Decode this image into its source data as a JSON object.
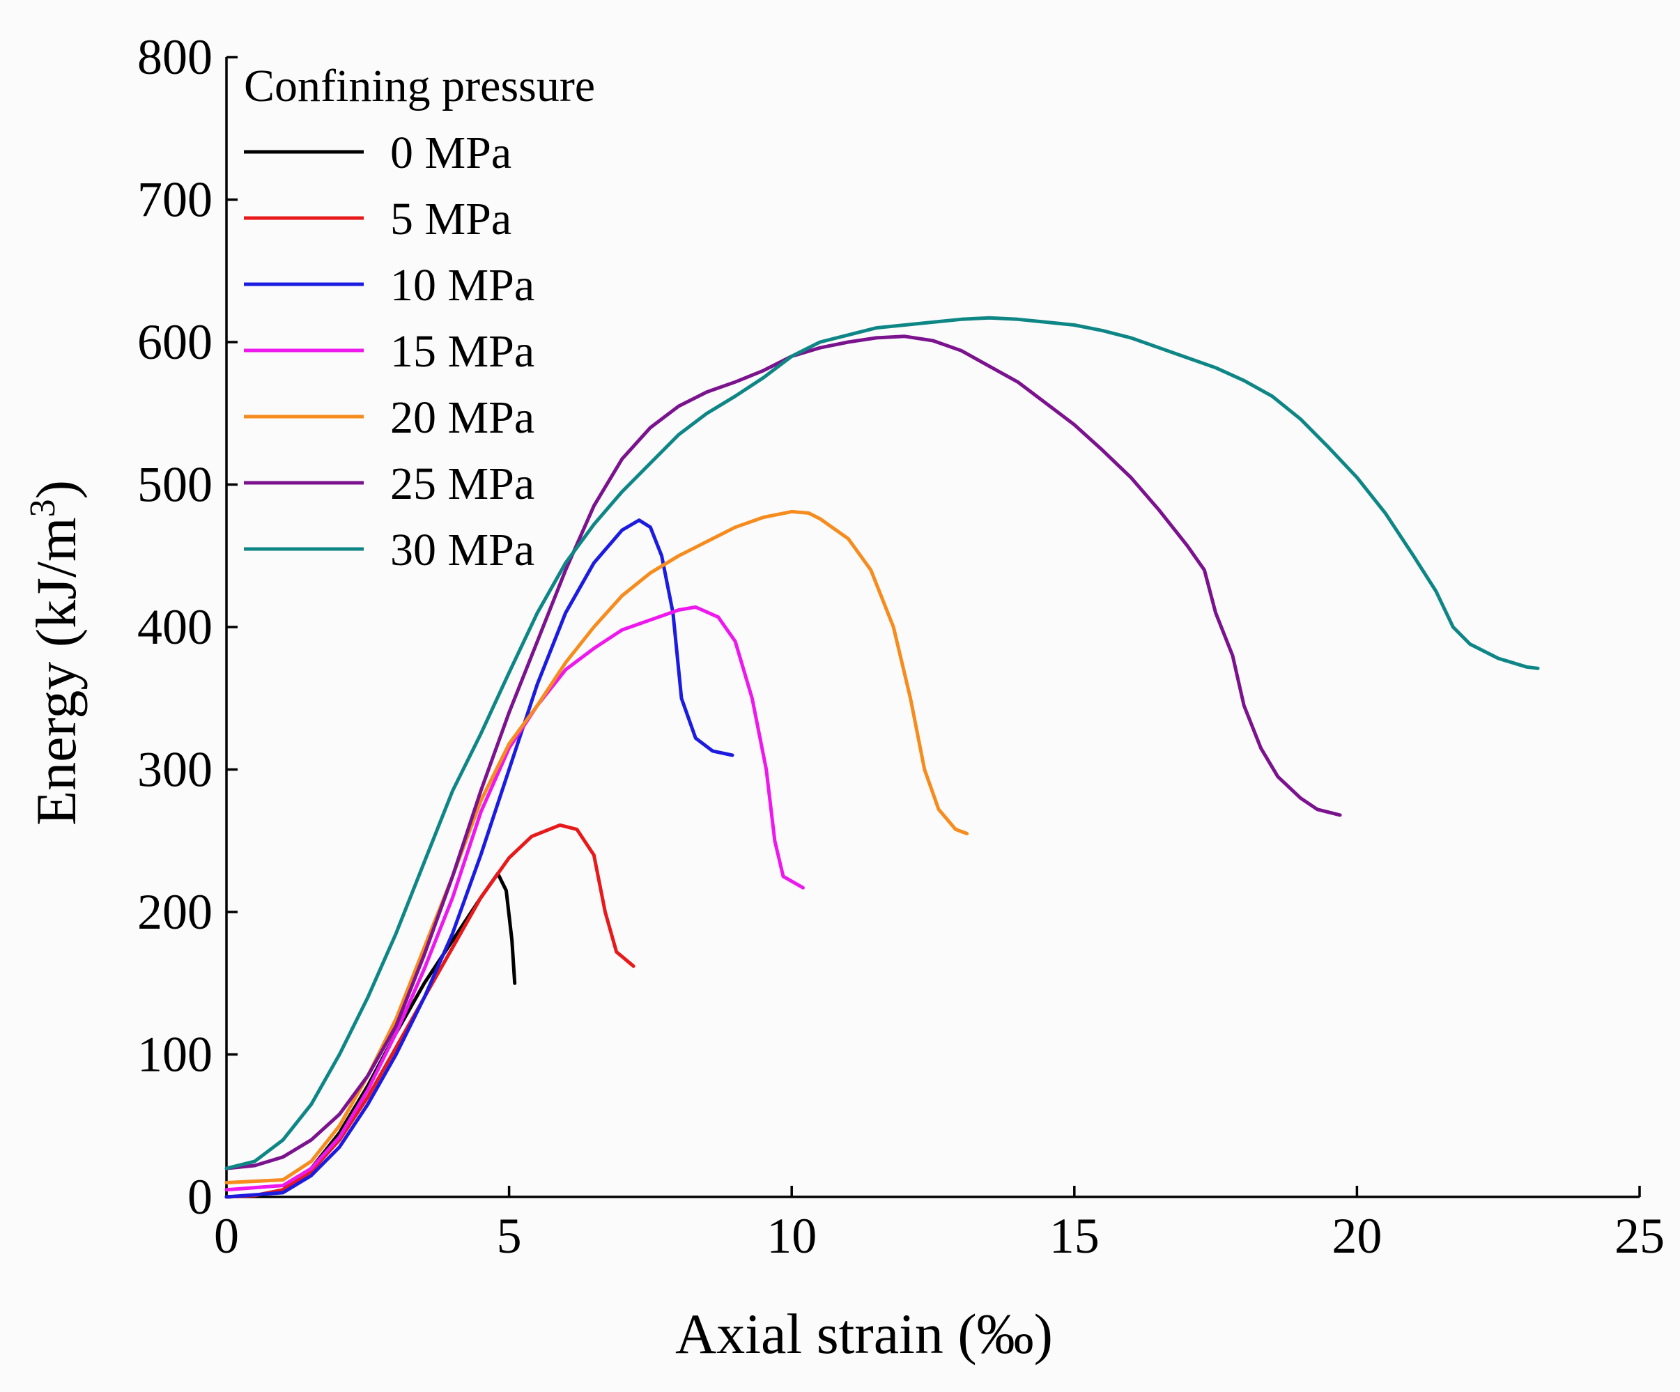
{
  "chart_data": {
    "type": "line",
    "title": "",
    "xlabel": "Axial strain (‰)",
    "ylabel": "Energy (kJ/m",
    "ylabel_sup": "3",
    "ylabel_close": ")",
    "xlim": [
      0,
      25
    ],
    "ylim": [
      0,
      800
    ],
    "xticks": [
      0,
      5,
      10,
      15,
      20,
      25
    ],
    "yticks": [
      0,
      100,
      200,
      300,
      400,
      500,
      600,
      700,
      800
    ],
    "grid": false,
    "legend": {
      "title": "Confining pressure",
      "position": "top-left"
    },
    "series": [
      {
        "name": "0 MPa",
        "color": "#000000",
        "points": [
          [
            0,
            0
          ],
          [
            0.5,
            1
          ],
          [
            1,
            5
          ],
          [
            1.5,
            20
          ],
          [
            2,
            45
          ],
          [
            2.5,
            78
          ],
          [
            3,
            115
          ],
          [
            3.5,
            150
          ],
          [
            4,
            180
          ],
          [
            4.5,
            210
          ],
          [
            4.8,
            227
          ],
          [
            4.95,
            215
          ],
          [
            5.05,
            180
          ],
          [
            5.1,
            150
          ]
        ]
      },
      {
        "name": "5 MPa",
        "color": "#e8191b",
        "points": [
          [
            0,
            0
          ],
          [
            0.5,
            1
          ],
          [
            1,
            5
          ],
          [
            1.5,
            18
          ],
          [
            2,
            40
          ],
          [
            2.5,
            70
          ],
          [
            3,
            105
          ],
          [
            3.5,
            140
          ],
          [
            4,
            175
          ],
          [
            4.5,
            210
          ],
          [
            5,
            238
          ],
          [
            5.4,
            253
          ],
          [
            5.9,
            261
          ],
          [
            6.2,
            258
          ],
          [
            6.5,
            240
          ],
          [
            6.7,
            200
          ],
          [
            6.9,
            172
          ],
          [
            7.2,
            162
          ]
        ]
      },
      {
        "name": "10 MPa",
        "color": "#1c1ce0",
        "points": [
          [
            0,
            0
          ],
          [
            1,
            3
          ],
          [
            1.5,
            15
          ],
          [
            2,
            35
          ],
          [
            2.5,
            65
          ],
          [
            3,
            100
          ],
          [
            3.5,
            140
          ],
          [
            4,
            185
          ],
          [
            4.5,
            240
          ],
          [
            5,
            300
          ],
          [
            5.5,
            360
          ],
          [
            6,
            410
          ],
          [
            6.5,
            445
          ],
          [
            7,
            468
          ],
          [
            7.3,
            475
          ],
          [
            7.5,
            470
          ],
          [
            7.7,
            450
          ],
          [
            7.9,
            410
          ],
          [
            8.05,
            350
          ],
          [
            8.3,
            322
          ],
          [
            8.6,
            313
          ],
          [
            8.95,
            310
          ]
        ]
      },
      {
        "name": "15 MPa",
        "color": "#ee18ee",
        "points": [
          [
            0,
            5
          ],
          [
            1,
            8
          ],
          [
            1.5,
            20
          ],
          [
            2,
            42
          ],
          [
            2.5,
            75
          ],
          [
            3,
            115
          ],
          [
            3.5,
            160
          ],
          [
            4,
            210
          ],
          [
            4.5,
            270
          ],
          [
            5,
            315
          ],
          [
            5.5,
            345
          ],
          [
            6,
            370
          ],
          [
            6.5,
            385
          ],
          [
            7,
            398
          ],
          [
            7.5,
            405
          ],
          [
            8,
            412
          ],
          [
            8.3,
            414
          ],
          [
            8.7,
            407
          ],
          [
            9,
            390
          ],
          [
            9.3,
            350
          ],
          [
            9.55,
            300
          ],
          [
            9.7,
            250
          ],
          [
            9.85,
            225
          ],
          [
            10.2,
            217
          ]
        ]
      },
      {
        "name": "20 MPa",
        "color": "#f68c1e",
        "points": [
          [
            0,
            10
          ],
          [
            1,
            12
          ],
          [
            1.5,
            25
          ],
          [
            2,
            50
          ],
          [
            2.5,
            85
          ],
          [
            3,
            125
          ],
          [
            3.5,
            175
          ],
          [
            4,
            225
          ],
          [
            4.5,
            278
          ],
          [
            5,
            318
          ],
          [
            5.5,
            345
          ],
          [
            6,
            375
          ],
          [
            6.5,
            400
          ],
          [
            7,
            422
          ],
          [
            7.5,
            438
          ],
          [
            8,
            450
          ],
          [
            8.5,
            460
          ],
          [
            9,
            470
          ],
          [
            9.5,
            477
          ],
          [
            10,
            481
          ],
          [
            10.3,
            480
          ],
          [
            10.5,
            476
          ],
          [
            11,
            462
          ],
          [
            11.4,
            440
          ],
          [
            11.8,
            400
          ],
          [
            12.1,
            350
          ],
          [
            12.35,
            300
          ],
          [
            12.6,
            272
          ],
          [
            12.9,
            258
          ],
          [
            13.1,
            255
          ]
        ]
      },
      {
        "name": "25 MPa",
        "color": "#7b128e",
        "points": [
          [
            0,
            20
          ],
          [
            0.5,
            22
          ],
          [
            1,
            28
          ],
          [
            1.5,
            40
          ],
          [
            2,
            58
          ],
          [
            2.5,
            85
          ],
          [
            3,
            120
          ],
          [
            3.5,
            170
          ],
          [
            4,
            225
          ],
          [
            4.5,
            285
          ],
          [
            5,
            340
          ],
          [
            5.5,
            390
          ],
          [
            6,
            440
          ],
          [
            6.5,
            485
          ],
          [
            7,
            518
          ],
          [
            7.5,
            540
          ],
          [
            8,
            555
          ],
          [
            8.5,
            565
          ],
          [
            9,
            572
          ],
          [
            9.5,
            580
          ],
          [
            10,
            590
          ],
          [
            10.5,
            596
          ],
          [
            11,
            600
          ],
          [
            11.5,
            603
          ],
          [
            12,
            604
          ],
          [
            12.5,
            601
          ],
          [
            13,
            594
          ],
          [
            13.5,
            583
          ],
          [
            14,
            572
          ],
          [
            14.5,
            557
          ],
          [
            15,
            542
          ],
          [
            15.5,
            524
          ],
          [
            16,
            505
          ],
          [
            16.5,
            482
          ],
          [
            17,
            457
          ],
          [
            17.3,
            440
          ],
          [
            17.5,
            410
          ],
          [
            17.8,
            380
          ],
          [
            18,
            345
          ],
          [
            18.3,
            315
          ],
          [
            18.6,
            295
          ],
          [
            19,
            280
          ],
          [
            19.3,
            272
          ],
          [
            19.7,
            268
          ]
        ]
      },
      {
        "name": "30 MPa",
        "color": "#0f8686",
        "points": [
          [
            0,
            20
          ],
          [
            0.5,
            25
          ],
          [
            1,
            40
          ],
          [
            1.5,
            65
          ],
          [
            2,
            100
          ],
          [
            2.5,
            140
          ],
          [
            3,
            185
          ],
          [
            3.5,
            235
          ],
          [
            4,
            285
          ],
          [
            4.5,
            325
          ],
          [
            5,
            368
          ],
          [
            5.5,
            410
          ],
          [
            6,
            445
          ],
          [
            6.5,
            472
          ],
          [
            7,
            495
          ],
          [
            7.5,
            515
          ],
          [
            8,
            535
          ],
          [
            8.5,
            550
          ],
          [
            9,
            562
          ],
          [
            9.5,
            575
          ],
          [
            10,
            590
          ],
          [
            10.5,
            600
          ],
          [
            11,
            605
          ],
          [
            11.5,
            610
          ],
          [
            12,
            612
          ],
          [
            12.5,
            614
          ],
          [
            13,
            616
          ],
          [
            13.5,
            617
          ],
          [
            14,
            616
          ],
          [
            14.5,
            614
          ],
          [
            15,
            612
          ],
          [
            15.5,
            608
          ],
          [
            16,
            603
          ],
          [
            16.5,
            596
          ],
          [
            17,
            589
          ],
          [
            17.5,
            582
          ],
          [
            18,
            573
          ],
          [
            18.5,
            562
          ],
          [
            19,
            546
          ],
          [
            19.5,
            526
          ],
          [
            20,
            505
          ],
          [
            20.5,
            480
          ],
          [
            21,
            450
          ],
          [
            21.4,
            425
          ],
          [
            21.7,
            400
          ],
          [
            22,
            388
          ],
          [
            22.5,
            378
          ],
          [
            23,
            372
          ],
          [
            23.2,
            371
          ]
        ]
      }
    ]
  }
}
